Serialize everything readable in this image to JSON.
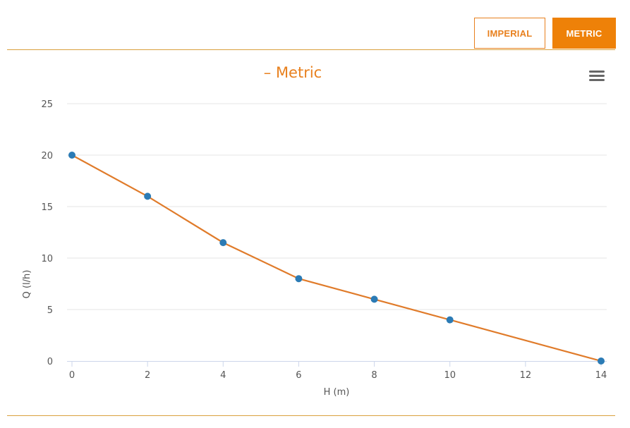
{
  "unit_toggle": {
    "imperial_label": "IMPERIAL",
    "metric_label": "METRIC",
    "selected": "METRIC"
  },
  "menu_icon": "hamburger-menu-icon",
  "colors": {
    "accent": "#ee8108",
    "line": "#e07b2a",
    "point": "#2b7bb5",
    "title": "#e8801e"
  },
  "chart_data": {
    "type": "line",
    "title": "– Metric",
    "xlabel": "H (m)",
    "ylabel": "Q (l/h)",
    "xlim": [
      0,
      14
    ],
    "ylim": [
      0,
      25
    ],
    "x_ticks": [
      "0",
      "2",
      "4",
      "6",
      "8",
      "10",
      "12",
      "14"
    ],
    "y_ticks": [
      "0",
      "5",
      "10",
      "15",
      "20",
      "25"
    ],
    "grid": true,
    "legend": "none",
    "series": [
      {
        "x": [
          0,
          2,
          4,
          6,
          8,
          10,
          14
        ],
        "y": [
          20,
          16,
          11.5,
          8,
          6,
          4,
          0
        ]
      }
    ]
  }
}
